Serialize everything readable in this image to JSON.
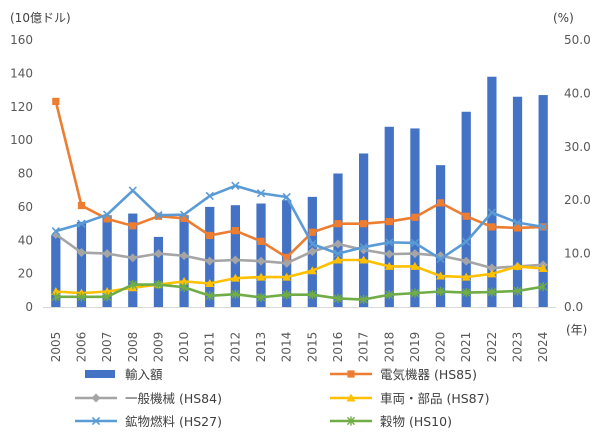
{
  "chart_data": {
    "type": "bar",
    "left_unit": "(10億ドル)",
    "right_unit": "(%)",
    "x_unit": "(年)",
    "categories": [
      "2005",
      "2006",
      "2007",
      "2008",
      "2009",
      "2010",
      "2011",
      "2012",
      "2013",
      "2014",
      "2015",
      "2016",
      "2017",
      "2018",
      "2019",
      "2020",
      "2021",
      "2022",
      "2023",
      "2024"
    ],
    "left_axis": {
      "ylim": [
        0,
        160
      ],
      "ticks": [
        "0",
        "20",
        "40",
        "60",
        "80",
        "100",
        "120",
        "140",
        "160"
      ],
      "tick_values": [
        0,
        20,
        40,
        60,
        80,
        100,
        120,
        140,
        160
      ]
    },
    "right_axis": {
      "ylim": [
        0,
        50
      ],
      "ticks": [
        "0.0",
        "10.0",
        "20.0",
        "30.0",
        "40.0",
        "50.0"
      ],
      "tick_values": [
        0,
        10,
        20,
        30,
        40,
        50
      ]
    },
    "grid": false,
    "legend_position": "bottom",
    "series": [
      {
        "name": "輸入額",
        "type": "bar",
        "axis": "left",
        "color": "#4472C4",
        "marker": "none",
        "values": [
          43,
          51,
          55,
          56,
          42,
          55,
          60,
          61,
          62,
          64,
          66,
          80,
          92,
          108,
          107,
          85,
          117,
          138,
          126,
          127
        ]
      },
      {
        "name": "電気機器 (HS85)",
        "type": "line",
        "axis": "right",
        "color": "#ED7D31",
        "marker": "square",
        "values": [
          38.5,
          19.0,
          16.5,
          15.2,
          17.0,
          16.6,
          13.4,
          14.3,
          12.3,
          9.3,
          14.0,
          15.6,
          15.6,
          16.0,
          16.8,
          19.5,
          17.0,
          15.0,
          14.8,
          15.0
        ]
      },
      {
        "name": "一般機械 (HS84)",
        "type": "line",
        "axis": "right",
        "color": "#A5A5A5",
        "marker": "diamond",
        "values": [
          13.6,
          10.2,
          10.0,
          9.2,
          10.0,
          9.6,
          8.6,
          8.8,
          8.6,
          8.2,
          10.4,
          11.8,
          10.7,
          9.9,
          10.0,
          9.6,
          8.6,
          7.3,
          7.6,
          7.9
        ]
      },
      {
        "name": "車両・部品 (HS87)",
        "type": "line",
        "axis": "right",
        "color": "#FFC000",
        "marker": "triangle",
        "values": [
          2.9,
          2.6,
          2.9,
          3.6,
          4.2,
          4.8,
          4.4,
          5.4,
          5.6,
          5.6,
          6.8,
          8.8,
          8.8,
          7.6,
          7.6,
          5.8,
          5.6,
          6.2,
          7.6,
          7.2
        ]
      },
      {
        "name": "鉱物燃料 (HS27)",
        "type": "line",
        "axis": "right",
        "color": "#5B9BD5",
        "marker": "x",
        "values": [
          14.2,
          15.6,
          17.3,
          21.8,
          17.2,
          17.3,
          20.8,
          22.7,
          21.3,
          20.6,
          11.8,
          10.0,
          11.2,
          12.1,
          12.0,
          9.0,
          12.2,
          17.7,
          15.8,
          15.0
        ]
      },
      {
        "name": "穀物 (HS10)",
        "type": "line",
        "axis": "right",
        "color": "#70AD47",
        "marker": "star",
        "values": [
          1.9,
          1.9,
          1.9,
          4.2,
          4.2,
          3.7,
          2.1,
          2.4,
          1.8,
          2.3,
          2.3,
          1.6,
          1.4,
          2.3,
          2.6,
          2.9,
          2.7,
          2.8,
          3.0,
          3.8
        ]
      }
    ]
  }
}
